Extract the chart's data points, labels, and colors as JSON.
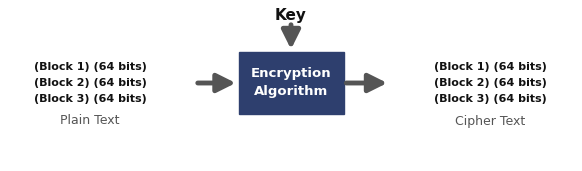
{
  "background_color": "#ffffff",
  "box_color": "#2e3f6e",
  "box_text": "Encryption\nAlgorithm",
  "box_text_color": "#ffffff",
  "key_label": "Key",
  "arrow_color": "#555555",
  "text_color_bold": "#111111",
  "text_color_normal": "#555555",
  "plain_text_lines": [
    "(Block 1) (64 bits)",
    "(Block 2) (64 bits)",
    "(Block 3) (64 bits)"
  ],
  "plain_text_label": "Plain Text",
  "cipher_text_lines": [
    "(Block 1) (64 bits)",
    "(Block 2) (64 bits)",
    "(Block 3) (64 bits)"
  ],
  "cipher_text_label": "Cipher Text",
  "figsize": [
    5.82,
    1.71
  ],
  "dpi": 100
}
